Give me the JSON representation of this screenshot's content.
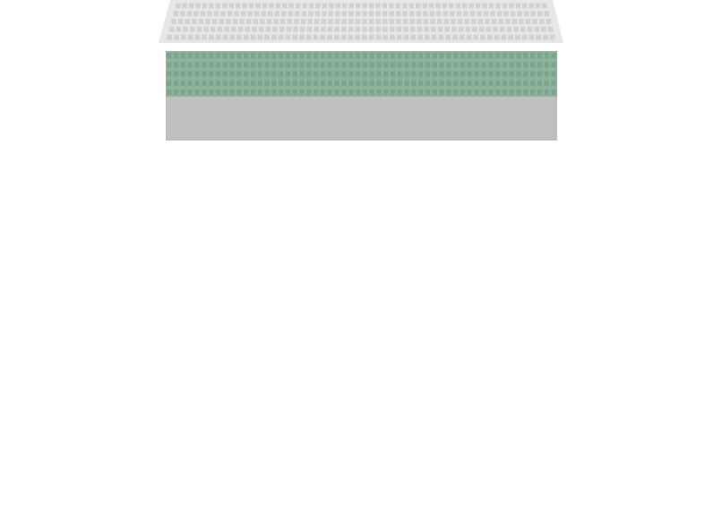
{
  "scene": {
    "background_color": "#ffffff"
  },
  "stands": {
    "upper_tier": {
      "color": "#e7e7e7",
      "seat_color": "#d2d2d2",
      "seat_rows": 5,
      "seat_columns": 56
    },
    "lower_tier": {
      "color": "#8fb49d",
      "seat_color": "#7fa48e",
      "seat_rows": 5,
      "seat_columns": 56
    },
    "front_wall": {
      "color": "#c0c0c0"
    }
  }
}
